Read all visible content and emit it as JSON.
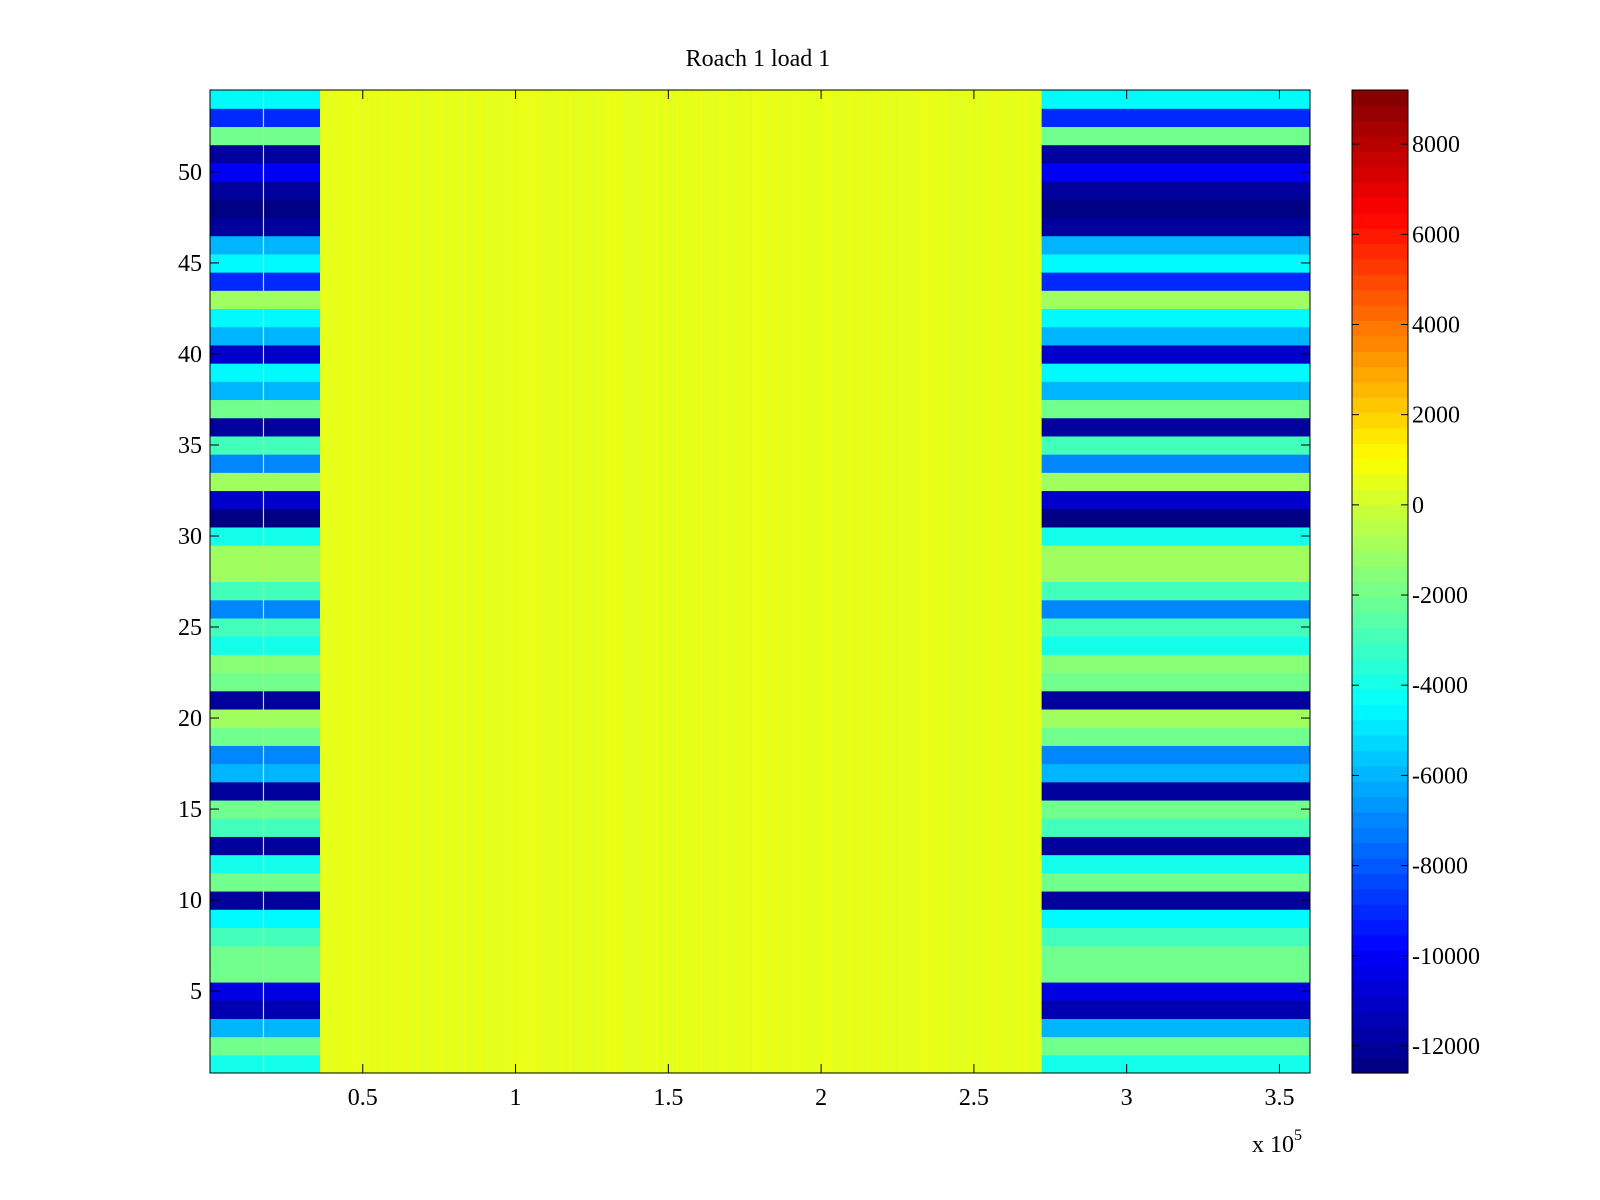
{
  "chart_data": {
    "type": "heatmap",
    "title": "Roach 1 load 1",
    "xlabel": "",
    "ylabel": "",
    "x_exponent_label": "x 10",
    "x_exponent_power": "5",
    "x_scale_factor": 100000,
    "xlim": [
      0,
      360000
    ],
    "ylim": [
      0.5,
      54.5
    ],
    "x_ticks": [
      0.5,
      1,
      1.5,
      2,
      2.5,
      3,
      3.5
    ],
    "x_tick_labels": [
      "0.5",
      "1",
      "1.5",
      "2",
      "2.5",
      "3",
      "3.5"
    ],
    "y_ticks": [
      5,
      10,
      15,
      20,
      25,
      30,
      35,
      40,
      45,
      50
    ],
    "y_tick_labels": [
      "5",
      "10",
      "15",
      "20",
      "25",
      "30",
      "35",
      "40",
      "45",
      "50"
    ],
    "rows": 54,
    "colormap": "jet",
    "clim": [
      -12600,
      9200
    ],
    "colorbar_ticks": [
      8000,
      6000,
      4000,
      2000,
      0,
      -2000,
      -4000,
      -6000,
      -8000,
      -10000,
      -12000
    ],
    "colorbar_tick_labels": [
      "8000",
      "6000",
      "4000",
      "2000",
      "0",
      "-2000",
      "-4000",
      "-6000",
      "-8000",
      "-10000",
      "-12000"
    ],
    "regions": [
      {
        "name": "left-band",
        "x_range": [
          0,
          36000
        ]
      },
      {
        "name": "middle-region",
        "x_range": [
          36000,
          272000
        ],
        "approx_value": 500
      },
      {
        "name": "right-band",
        "x_range": [
          272000,
          360000
        ]
      }
    ],
    "thin_line_x": 17500,
    "row_values": [
      -4000,
      -2000,
      -6000,
      -11500,
      -10500,
      -2000,
      -2000,
      -3000,
      -4500,
      -12000,
      -2000,
      -4000,
      -12000,
      -3000,
      -2000,
      -12000,
      -6000,
      -7000,
      -2000,
      -1000,
      -12000,
      -2000,
      -1500,
      -4000,
      -3000,
      -7000,
      -3000,
      -1000,
      -1000,
      -4000,
      -12500,
      -11000,
      -1000,
      -7000,
      -3000,
      -12000,
      -2000,
      -6000,
      -4500,
      -11000,
      -6000,
      -4500,
      -1000,
      -9000,
      -4500,
      -6000,
      -12000,
      -12500,
      -12000,
      -10000,
      -12000,
      -2000,
      -9000,
      -4500
    ]
  }
}
